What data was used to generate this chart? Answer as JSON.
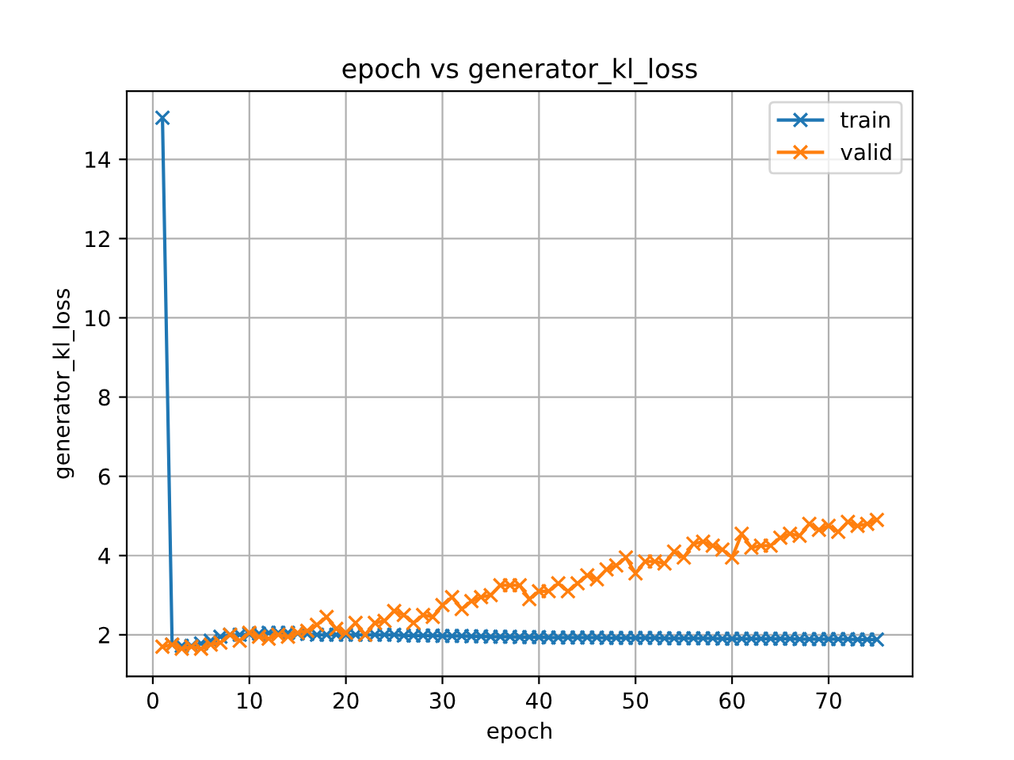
{
  "chart_data": {
    "type": "line",
    "title": "epoch vs generator_kl_loss",
    "xlabel": "epoch",
    "ylabel": "generator_kl_loss",
    "x": [
      1,
      2,
      3,
      4,
      5,
      6,
      7,
      8,
      9,
      10,
      11,
      12,
      13,
      14,
      15,
      16,
      17,
      18,
      19,
      20,
      21,
      22,
      23,
      24,
      25,
      26,
      27,
      28,
      29,
      30,
      31,
      32,
      33,
      34,
      35,
      36,
      37,
      38,
      39,
      40,
      41,
      42,
      43,
      44,
      45,
      46,
      47,
      48,
      49,
      50,
      51,
      52,
      53,
      54,
      55,
      56,
      57,
      58,
      59,
      60,
      61,
      62,
      63,
      64,
      65,
      66,
      67,
      68,
      69,
      70,
      71,
      72,
      73,
      74,
      75
    ],
    "series": [
      {
        "name": "train",
        "color": "#1f77b4",
        "values": [
          15.05,
          1.75,
          1.72,
          1.72,
          1.78,
          1.85,
          1.95,
          2.0,
          2.0,
          2.02,
          2.03,
          2.05,
          2.05,
          2.05,
          2.03,
          2.02,
          2.0,
          2.0,
          2.0,
          2.0,
          2.0,
          2.0,
          2.0,
          2.0,
          2.0,
          1.98,
          1.98,
          1.98,
          1.98,
          1.97,
          1.97,
          1.97,
          1.96,
          1.96,
          1.95,
          1.95,
          1.95,
          1.94,
          1.94,
          1.94,
          1.93,
          1.93,
          1.93,
          1.93,
          1.93,
          1.93,
          1.92,
          1.92,
          1.92,
          1.92,
          1.92,
          1.92,
          1.91,
          1.91,
          1.91,
          1.91,
          1.91,
          1.91,
          1.9,
          1.9,
          1.9,
          1.9,
          1.9,
          1.9,
          1.9,
          1.9,
          1.89,
          1.89,
          1.89,
          1.89,
          1.89,
          1.89,
          1.88,
          1.88,
          1.88
        ]
      },
      {
        "name": "valid",
        "color": "#ff7f0e",
        "values": [
          1.7,
          1.75,
          1.65,
          1.7,
          1.65,
          1.75,
          1.8,
          2.0,
          1.85,
          2.05,
          1.95,
          1.9,
          2.0,
          1.95,
          2.05,
          2.1,
          2.25,
          2.45,
          2.15,
          2.05,
          2.3,
          2.0,
          2.3,
          2.35,
          2.6,
          2.5,
          2.3,
          2.5,
          2.45,
          2.75,
          2.95,
          2.65,
          2.85,
          2.95,
          3.0,
          3.25,
          3.25,
          3.25,
          2.9,
          3.1,
          3.1,
          3.3,
          3.1,
          3.3,
          3.5,
          3.4,
          3.65,
          3.75,
          3.95,
          3.55,
          3.85,
          3.85,
          3.8,
          4.1,
          3.95,
          4.3,
          4.35,
          4.25,
          4.15,
          3.95,
          4.55,
          4.2,
          4.25,
          4.25,
          4.45,
          4.55,
          4.5,
          4.8,
          4.65,
          4.75,
          4.6,
          4.85,
          4.75,
          4.8,
          4.9
        ]
      }
    ],
    "xlim": [
      -2.7,
      78.7
    ],
    "ylim": [
      0.95,
      15.72
    ],
    "xticks": [
      0,
      10,
      20,
      30,
      40,
      50,
      60,
      70
    ],
    "yticks": [
      2,
      4,
      6,
      8,
      10,
      12,
      14
    ],
    "grid": true,
    "legend": "top right",
    "marker": "cross",
    "line_style": "solid"
  }
}
